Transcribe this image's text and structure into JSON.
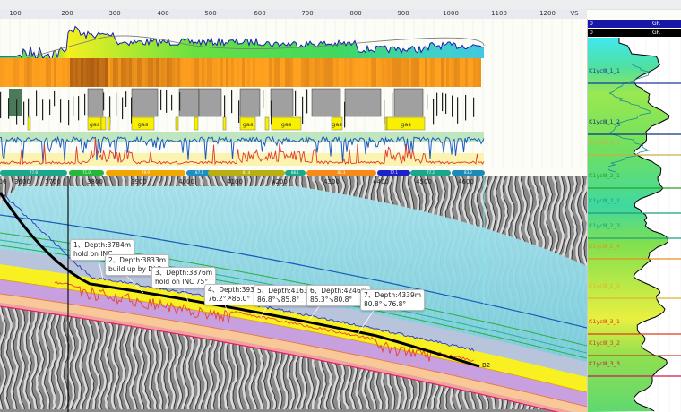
{
  "vs_axis": {
    "ticks": [
      "100",
      "200",
      "300",
      "400",
      "500",
      "600",
      "700",
      "800",
      "900",
      "1000",
      "1100",
      "1200"
    ],
    "label": "VS"
  },
  "lithology": {
    "gas_label": "gas"
  },
  "segments": [
    {
      "label": "77.8",
      "color": "#1aa88a"
    },
    {
      "label": "71.0",
      "color": "#22b83a"
    },
    {
      "label": "79.9",
      "color": "#f0a800"
    },
    {
      "label": "87.1",
      "color": "#1b8fc0"
    },
    {
      "label": "81.4",
      "color": "#b8b010"
    },
    {
      "label": "86.1",
      "color": "#1aa88a"
    },
    {
      "label": "85.3",
      "color": "#f88a1a"
    },
    {
      "label": "77.1",
      "color": "#1c22c8"
    },
    {
      "label": "77.2",
      "color": "#1aa88a"
    },
    {
      "label": "83.2",
      "color": "#1a8ab8"
    }
  ],
  "depth_axis": {
    "ticks": [
      "00",
      "3600",
      "3700",
      "3800",
      "3900",
      "4000",
      "4100",
      "4200",
      "4300",
      "4400",
      "4500",
      "4600"
    ]
  },
  "annotations": [
    {
      "line1": "1、Depth:3784m",
      "line2": "hold on INC"
    },
    {
      "line1": "2、Depth:3833m",
      "line2": "build up by DLS"
    },
    {
      "line1": "3、Depth:3876m",
      "line2": "hold on INC 75°"
    },
    {
      "line1": "4、Depth:3933m",
      "line2": "76.2°↗86.0°"
    },
    {
      "line1": "5、Depth:4163m",
      "line2": "86.8°↘85.8°"
    },
    {
      "line1": "6、Depth:4246m",
      "line2": "85.3°↘80.8°"
    },
    {
      "line1": "7、Depth:4339m",
      "line2": "80.8°↘76.8°"
    }
  ],
  "well_end_label": "B2",
  "right_panel": {
    "headers": [
      {
        "min": "0",
        "name": "GR",
        "color": "#1818a8"
      },
      {
        "min": "0",
        "name": "GR",
        "color": "#000000"
      }
    ],
    "markers": [
      {
        "name": "K1ycⅢ_1_1",
        "color": "#1a3a9a"
      },
      {
        "name": "K1ycⅢ_1_2",
        "color": "#13307a"
      },
      {
        "name": "K1ycⅢ_1_3",
        "color": "#c8b040"
      },
      {
        "name": "K1ycⅢ_2_1",
        "color": "#2aa020"
      },
      {
        "name": "K1ycⅢ_2_2",
        "color": "#18a080"
      },
      {
        "name": "K1ycⅢ_2_3",
        "color": "#18a080"
      },
      {
        "name": "K1ycⅢ_2_4",
        "color": "#e8901a"
      },
      {
        "name": "K1ycⅢ_2_5",
        "color": "#d8b830"
      },
      {
        "name": "K1ycⅢ_3_1",
        "color": "#e03a1a"
      },
      {
        "name": "K1ycⅢ_3_2",
        "color": "#c04a2a"
      },
      {
        "name": "K1ycⅢ_3_3",
        "color": "#d01850"
      }
    ]
  }
}
